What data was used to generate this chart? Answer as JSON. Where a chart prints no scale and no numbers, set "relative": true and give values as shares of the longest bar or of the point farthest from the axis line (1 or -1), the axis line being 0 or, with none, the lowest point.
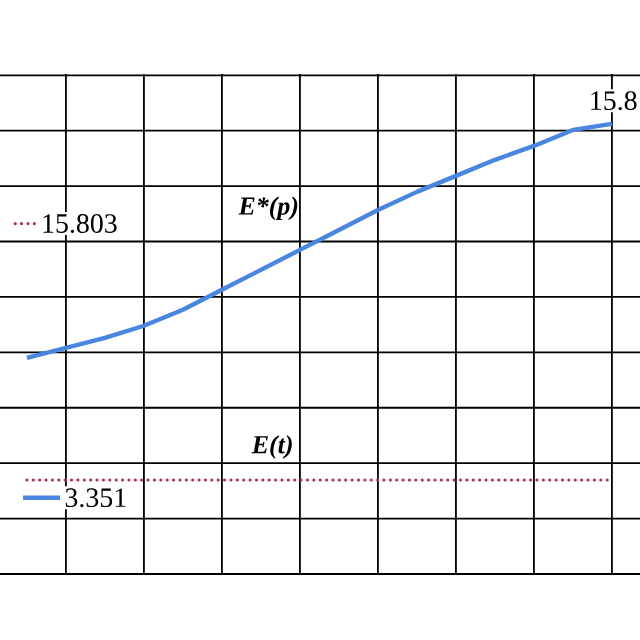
{
  "chart_data": {
    "type": "line",
    "relative": true,
    "grid": true,
    "tick_labels": false,
    "categories": [
      null,
      null,
      null,
      null,
      null,
      null,
      null,
      null,
      null,
      null,
      null,
      null,
      null,
      null,
      null,
      null
    ],
    "series": [
      {
        "name": "E*(p)",
        "color": "#4a86e0",
        "line_style": "solid",
        "values": [
          0.343,
          0.371,
          0.399,
          0.433,
          0.478,
          0.534,
          0.59,
          0.646,
          0.702,
          0.758,
          0.809,
          0.854,
          0.899,
          0.938,
          0.983,
          1.0
        ]
      },
      {
        "name": "E(t)",
        "color": "#b0304a",
        "line_style": "dotted",
        "values": [
          0,
          0,
          0,
          0,
          0,
          0,
          0,
          0,
          0,
          0,
          0,
          0,
          0,
          0,
          0,
          0
        ]
      }
    ],
    "annotations": [
      "15.803",
      "15.8",
      "3.351"
    ]
  }
}
